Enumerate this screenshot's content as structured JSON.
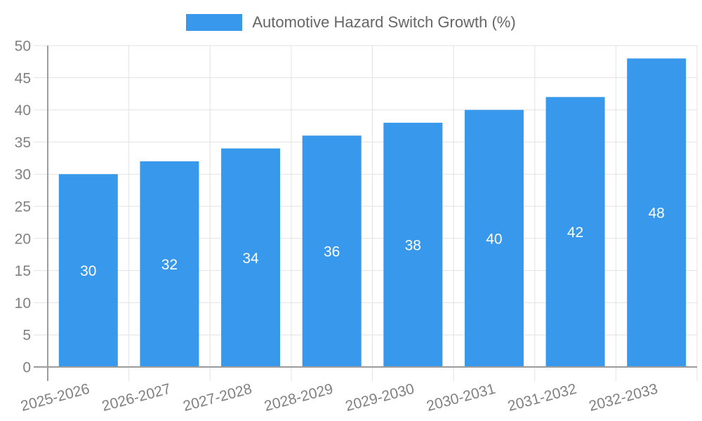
{
  "chart_data": {
    "type": "bar",
    "legend": {
      "position": "top",
      "label": "Automotive Hazard Switch Growth (%)"
    },
    "categories": [
      "2025-2026",
      "2026-2027",
      "2027-2028",
      "2028-2029",
      "2029-2030",
      "2030-2031",
      "2031-2032",
      "2032-2033"
    ],
    "series": [
      {
        "name": "Automotive Hazard Switch Growth (%)",
        "values": [
          30,
          32,
          34,
          36,
          38,
          40,
          42,
          48
        ]
      }
    ],
    "bar_value_labels": [
      "30",
      "32",
      "34",
      "36",
      "38",
      "40",
      "42",
      "48"
    ],
    "ylim": [
      0,
      50
    ],
    "ytick_step": 5,
    "xlabel": "",
    "ylabel": "",
    "grid": true,
    "x_label_rotation_deg": -15,
    "colors": {
      "bar": "#3898ec",
      "grid": "#e2e2e2",
      "axis": "#9c9c9c",
      "tick_text": "#808080",
      "legend_text": "#666666",
      "bar_label_text": "#ffffff",
      "background": "#ffffff"
    }
  }
}
